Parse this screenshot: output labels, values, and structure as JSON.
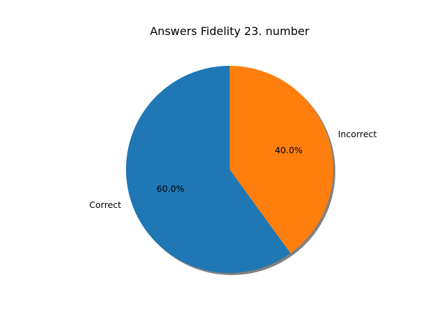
{
  "chart_data": {
    "type": "pie",
    "title": "Answers Fidelity 23. number",
    "categories": [
      "Correct",
      "Incorrect"
    ],
    "values": [
      60,
      40
    ],
    "percent_labels": [
      "60.0%",
      "40.0%"
    ],
    "colors": [
      "#1f77b4",
      "#ff7f0e"
    ],
    "start_angle_deg": 90,
    "direction": "counterclockwise",
    "shadow": true,
    "shadow_color": "#808080",
    "legend": "none"
  }
}
